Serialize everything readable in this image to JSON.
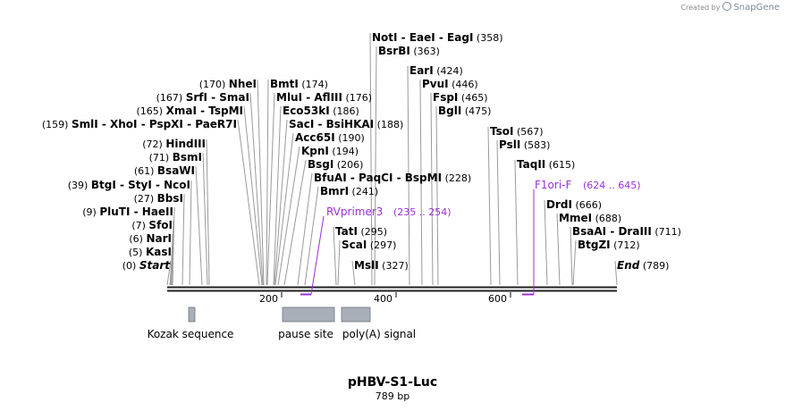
{
  "credit": {
    "prefix": "Created by",
    "brand": "SnapGene"
  },
  "plasmid": {
    "name": "pHBV-S1-Luc",
    "length": "789 bp"
  },
  "ruler": {
    "ticks": [
      "200",
      "400",
      "600"
    ]
  },
  "labels": [
    {
      "pos": "(0)",
      "name": "Start",
      "italic": true
    },
    {
      "pos": "(5)",
      "name": "KasI"
    },
    {
      "pos": "(6)",
      "name": "NarI"
    },
    {
      "pos": "(7)",
      "name": "SfoI"
    },
    {
      "pos": "(9)",
      "name": "PluTI  -  HaeII"
    },
    {
      "pos": "(27)",
      "name": "BbsI"
    },
    {
      "pos": "(39)",
      "name": "BtgI  -  StyI  -  NcoI"
    },
    {
      "pos": "(61)",
      "name": "BsaWI"
    },
    {
      "pos": "(71)",
      "name": "BsmI"
    },
    {
      "pos": "(72)",
      "name": "HindIII"
    },
    {
      "pos": "(159)",
      "name": "SmlI  -  XhoI  -  PspXI  -  PaeR7I"
    },
    {
      "pos": "(165)",
      "name": "XmaI  -  TspMI"
    },
    {
      "pos": "(167)",
      "name": "SrfI  -  SmaI"
    },
    {
      "pos": "(170)",
      "name": "NheI"
    },
    {
      "pos": "(174)",
      "name": "BmtI"
    },
    {
      "pos": "(176)",
      "name": "MluI  -  AflIII"
    },
    {
      "pos": "(186)",
      "name": "Eco53kI"
    },
    {
      "pos": "(188)",
      "name": "SacI  -  BsiHKAI"
    },
    {
      "pos": "(190)",
      "name": "Acc65I"
    },
    {
      "pos": "(194)",
      "name": "KpnI"
    },
    {
      "pos": "(206)",
      "name": "BsgI"
    },
    {
      "pos": "(228)",
      "name": "BfuAI  -  PaqCI  -  BspMI"
    },
    {
      "pos": "(241)",
      "name": "BmrI"
    },
    {
      "pos": "(295)",
      "name": "TatI"
    },
    {
      "pos": "(297)",
      "name": "ScaI"
    },
    {
      "pos": "(327)",
      "name": "MslI"
    },
    {
      "pos": "(358)",
      "name": "NotI  -  EaeI  -  EagI"
    },
    {
      "pos": "(363)",
      "name": "BsrBI"
    },
    {
      "pos": "(424)",
      "name": "EarI"
    },
    {
      "pos": "(446)",
      "name": "PvuI"
    },
    {
      "pos": "(465)",
      "name": "FspI"
    },
    {
      "pos": "(475)",
      "name": "BglI"
    },
    {
      "pos": "(567)",
      "name": "TsoI"
    },
    {
      "pos": "(583)",
      "name": "PslI"
    },
    {
      "pos": "(615)",
      "name": "TaqII"
    },
    {
      "pos": "(666)",
      "name": "DrdI"
    },
    {
      "pos": "(688)",
      "name": "MmeI"
    },
    {
      "pos": "(711)",
      "name": "BsaAI  -  DraIII"
    },
    {
      "pos": "(712)",
      "name": "BtgZI"
    },
    {
      "pos": "(789)",
      "name": "End",
      "italic": true
    }
  ],
  "primers": [
    {
      "name": "RVprimer3",
      "range": "(235 .. 254)",
      "color": "#9b30d9"
    },
    {
      "name": "F1ori-F",
      "range": "(624 .. 645)",
      "color": "#9b30d9"
    }
  ],
  "features": [
    {
      "name": "Kozak sequence"
    },
    {
      "name": "pause site"
    },
    {
      "name": "poly(A) signal"
    }
  ],
  "colors": {
    "feature_fill": "#a9afb8",
    "primer": "#9b30d9",
    "backbone": "#222222"
  }
}
